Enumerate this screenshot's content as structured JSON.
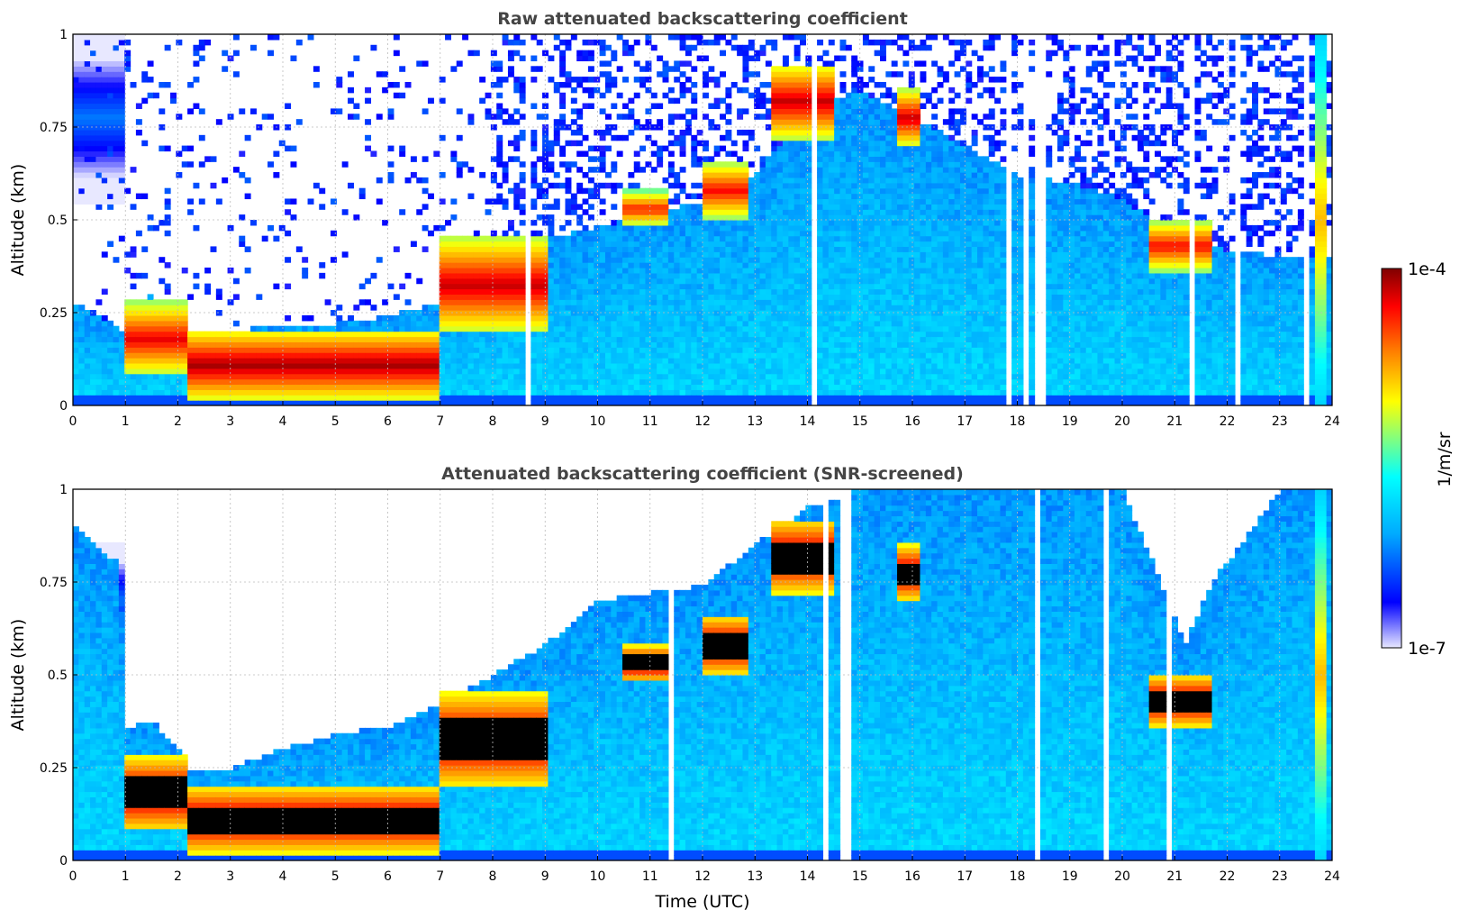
{
  "chart_data": [
    {
      "type": "heatmap",
      "title": "Raw attenuated backscattering coefficient",
      "xlabel": "",
      "ylabel": "Altitude (km)",
      "xlim": [
        0,
        24
      ],
      "ylim": [
        0,
        1
      ],
      "x_ticks": [
        "0",
        "1",
        "2",
        "3",
        "4",
        "5",
        "6",
        "7",
        "8",
        "9",
        "10",
        "11",
        "12",
        "13",
        "14",
        "15",
        "16",
        "17",
        "18",
        "19",
        "20",
        "21",
        "22",
        "23",
        "24"
      ],
      "y_ticks": [
        "0",
        "0.25",
        "0.5",
        "0.75",
        "1"
      ],
      "grid": true,
      "colorscale": "jet",
      "screened": false,
      "layer_top_km": [
        [
          0,
          0.28
        ],
        [
          1,
          0.2
        ],
        [
          1.5,
          0.3
        ],
        [
          2,
          0.2
        ],
        [
          2.2,
          0.2
        ],
        [
          3,
          0.2
        ],
        [
          4,
          0.22
        ],
        [
          5,
          0.22
        ],
        [
          6,
          0.24
        ],
        [
          7,
          0.28
        ],
        [
          8,
          0.36
        ],
        [
          9,
          0.45
        ],
        [
          10,
          0.48
        ],
        [
          11,
          0.52
        ],
        [
          12,
          0.55
        ],
        [
          13,
          0.62
        ],
        [
          14,
          0.8
        ],
        [
          15,
          0.85
        ],
        [
          16,
          0.78
        ],
        [
          17,
          0.7
        ],
        [
          18,
          0.62
        ],
        [
          19,
          0.6
        ],
        [
          20,
          0.56
        ],
        [
          21,
          0.45
        ],
        [
          22,
          0.42
        ],
        [
          23,
          0.4
        ],
        [
          24,
          0.4
        ]
      ],
      "features": [
        {
          "x_start": 0.0,
          "x_end": 0.95,
          "y_start": 0.55,
          "y_end": 1.0,
          "level": 0.25
        },
        {
          "x_start": 0.95,
          "x_end": 2.2,
          "y_start": 0.08,
          "y_end": 0.28,
          "level": 0.92
        },
        {
          "x_start": 2.2,
          "x_end": 7.0,
          "y_start": 0.02,
          "y_end": 0.2,
          "level": 0.98
        },
        {
          "x_start": 7.0,
          "x_end": 9.0,
          "y_start": 0.2,
          "y_end": 0.45,
          "level": 0.95
        },
        {
          "x_start": 10.5,
          "x_end": 11.3,
          "y_start": 0.48,
          "y_end": 0.58,
          "level": 0.88
        },
        {
          "x_start": 12.0,
          "x_end": 12.9,
          "y_start": 0.5,
          "y_end": 0.66,
          "level": 0.9
        },
        {
          "x_start": 13.3,
          "x_end": 14.5,
          "y_start": 0.72,
          "y_end": 0.92,
          "level": 0.95
        },
        {
          "x_start": 15.7,
          "x_end": 16.1,
          "y_start": 0.7,
          "y_end": 0.85,
          "level": 0.95
        },
        {
          "x_start": 20.5,
          "x_end": 21.7,
          "y_start": 0.36,
          "y_end": 0.5,
          "level": 0.9
        },
        {
          "x_start": 23.7,
          "x_end": 23.9,
          "y_start": 0.0,
          "y_end": 1.0,
          "level": 0.72
        }
      ]
    },
    {
      "type": "heatmap",
      "title": "Attenuated backscattering coefficient (SNR-screened)",
      "xlabel": "Time (UTC)",
      "ylabel": "Altitude (km)",
      "xlim": [
        0,
        24
      ],
      "ylim": [
        0,
        1
      ],
      "x_ticks": [
        "0",
        "1",
        "2",
        "3",
        "4",
        "5",
        "6",
        "7",
        "8",
        "9",
        "10",
        "11",
        "12",
        "13",
        "14",
        "15",
        "16",
        "17",
        "18",
        "19",
        "20",
        "21",
        "22",
        "23",
        "24"
      ],
      "y_ticks": [
        "0",
        "0.25",
        "0.5",
        "0.75",
        "1"
      ],
      "grid": true,
      "colorscale": "jet",
      "screened": true,
      "layer_top_km": [
        [
          0,
          0.9
        ],
        [
          0.9,
          0.8
        ],
        [
          1,
          0.35
        ],
        [
          1.5,
          0.38
        ],
        [
          2,
          0.3
        ],
        [
          2.2,
          0.25
        ],
        [
          3,
          0.25
        ],
        [
          4,
          0.3
        ],
        [
          5,
          0.34
        ],
        [
          6,
          0.36
        ],
        [
          7,
          0.42
        ],
        [
          8,
          0.5
        ],
        [
          9,
          0.58
        ],
        [
          10,
          0.7
        ],
        [
          11,
          0.72
        ],
        [
          12,
          0.74
        ],
        [
          13,
          0.85
        ],
        [
          14,
          0.95
        ],
        [
          15,
          1.0
        ],
        [
          16,
          1.0
        ],
        [
          17,
          1.0
        ],
        [
          18,
          1.0
        ],
        [
          19,
          1.0
        ],
        [
          20,
          1.0
        ],
        [
          20.6,
          0.8
        ],
        [
          21.2,
          0.58
        ],
        [
          21.7,
          0.75
        ],
        [
          22,
          0.8
        ],
        [
          23,
          1.0
        ],
        [
          24,
          1.0
        ]
      ],
      "features": [
        {
          "x_start": 0.0,
          "x_end": 0.95,
          "y_start": 0.55,
          "y_end": 0.85,
          "level": 0.25
        },
        {
          "x_start": 0.95,
          "x_end": 2.2,
          "y_start": 0.08,
          "y_end": 0.28,
          "level": 1.0
        },
        {
          "x_start": 2.2,
          "x_end": 7.0,
          "y_start": 0.02,
          "y_end": 0.2,
          "level": 1.0
        },
        {
          "x_start": 7.0,
          "x_end": 9.0,
          "y_start": 0.2,
          "y_end": 0.45,
          "level": 1.0
        },
        {
          "x_start": 10.5,
          "x_end": 11.3,
          "y_start": 0.48,
          "y_end": 0.58,
          "level": 1.0
        },
        {
          "x_start": 12.0,
          "x_end": 12.9,
          "y_start": 0.5,
          "y_end": 0.66,
          "level": 1.0
        },
        {
          "x_start": 13.3,
          "x_end": 14.5,
          "y_start": 0.72,
          "y_end": 0.92,
          "level": 1.0
        },
        {
          "x_start": 15.7,
          "x_end": 16.1,
          "y_start": 0.7,
          "y_end": 0.85,
          "level": 1.0
        },
        {
          "x_start": 20.5,
          "x_end": 21.7,
          "y_start": 0.36,
          "y_end": 0.5,
          "level": 1.0
        },
        {
          "x_start": 23.7,
          "x_end": 23.9,
          "y_start": 0.0,
          "y_end": 1.0,
          "level": 0.72
        }
      ]
    }
  ],
  "colorbar": {
    "label": "1/m/sr",
    "max_label": "1e-4",
    "min_label": "1e-7",
    "scale": "log",
    "colormap_stops": [
      "#e8e8ff",
      "#0000ff",
      "#00aaff",
      "#00ffff",
      "#80ff80",
      "#ffff00",
      "#ff8000",
      "#ff0000",
      "#800000"
    ]
  }
}
